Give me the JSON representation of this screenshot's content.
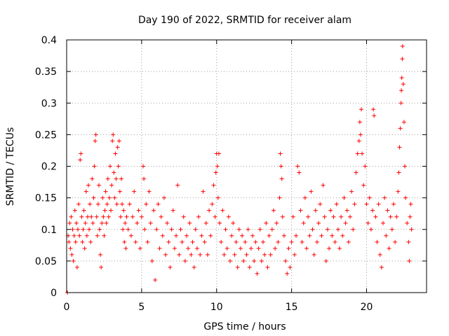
{
  "chart_data": {
    "type": "scatter",
    "title": "Day 190 of 2022, SRMTID for receiver alam",
    "xlabel": "GPS time / hours",
    "ylabel": "SRMTID / TECUs",
    "xlim": [
      0,
      24
    ],
    "ylim": [
      0,
      0.4
    ],
    "x_ticks": [
      0,
      5,
      10,
      15,
      20
    ],
    "x_tick_labels": [
      "0",
      "5",
      "10",
      "15",
      "20"
    ],
    "y_ticks": [
      0,
      0.05,
      0.1,
      0.15,
      0.2,
      0.25,
      0.3,
      0.35,
      0.4
    ],
    "y_tick_labels": [
      "0",
      "0.05",
      "0.1",
      "0.15",
      "0.2",
      "0.25",
      "0.3",
      "0.35",
      "0.4"
    ],
    "grid": true,
    "marker": "plus",
    "color": "#ff0000",
    "series": [
      {
        "name": "SRMTID",
        "points": [
          [
            0.05,
            0.0
          ],
          [
            0.1,
            0.09
          ],
          [
            0.15,
            0.08
          ],
          [
            0.2,
            0.11
          ],
          [
            0.25,
            0.07
          ],
          [
            0.3,
            0.12
          ],
          [
            0.35,
            0.06
          ],
          [
            0.4,
            0.1
          ],
          [
            0.45,
            0.05
          ],
          [
            0.5,
            0.09
          ],
          [
            0.55,
            0.13
          ],
          [
            0.6,
            0.08
          ],
          [
            0.65,
            0.11
          ],
          [
            0.7,
            0.04
          ],
          [
            0.75,
            0.1
          ],
          [
            0.8,
            0.14
          ],
          [
            0.85,
            0.09
          ],
          [
            0.9,
            0.21
          ],
          [
            0.95,
            0.22
          ],
          [
            1.0,
            0.12
          ],
          [
            1.05,
            0.08
          ],
          [
            1.1,
            0.1
          ],
          [
            1.15,
            0.13
          ],
          [
            1.2,
            0.07
          ],
          [
            1.25,
            0.11
          ],
          [
            1.3,
            0.16
          ],
          [
            1.35,
            0.09
          ],
          [
            1.4,
            0.12
          ],
          [
            1.45,
            0.17
          ],
          [
            1.5,
            0.1
          ],
          [
            1.55,
            0.14
          ],
          [
            1.6,
            0.08
          ],
          [
            1.65,
            0.12
          ],
          [
            1.7,
            0.18
          ],
          [
            1.75,
            0.11
          ],
          [
            1.8,
            0.15
          ],
          [
            1.85,
            0.2
          ],
          [
            1.9,
            0.24
          ],
          [
            1.95,
            0.25
          ],
          [
            2.0,
            0.12
          ],
          [
            2.05,
            0.09
          ],
          [
            2.1,
            0.14
          ],
          [
            2.15,
            0.17
          ],
          [
            2.2,
            0.1
          ],
          [
            2.25,
            0.06
          ],
          [
            2.3,
            0.04
          ],
          [
            2.35,
            0.11
          ],
          [
            2.4,
            0.15
          ],
          [
            2.45,
            0.12
          ],
          [
            2.5,
            0.09
          ],
          [
            2.55,
            0.13
          ],
          [
            2.6,
            0.16
          ],
          [
            2.65,
            0.11
          ],
          [
            2.7,
            0.14
          ],
          [
            2.75,
            0.18
          ],
          [
            2.8,
            0.12
          ],
          [
            2.85,
            0.15
          ],
          [
            2.9,
            0.2
          ],
          [
            2.95,
            0.13
          ],
          [
            3.0,
            0.17
          ],
          [
            3.05,
            0.24
          ],
          [
            3.1,
            0.25
          ],
          [
            3.15,
            0.19
          ],
          [
            3.2,
            0.15
          ],
          [
            3.25,
            0.22
          ],
          [
            3.3,
            0.18
          ],
          [
            3.35,
            0.14
          ],
          [
            3.4,
            0.23
          ],
          [
            3.45,
            0.2
          ],
          [
            3.5,
            0.24
          ],
          [
            3.55,
            0.16
          ],
          [
            3.6,
            0.12
          ],
          [
            3.65,
            0.18
          ],
          [
            3.7,
            0.14
          ],
          [
            3.75,
            0.1
          ],
          [
            3.8,
            0.13
          ],
          [
            3.85,
            0.08
          ],
          [
            3.9,
            0.11
          ],
          [
            3.95,
            0.07
          ],
          [
            4.0,
            0.12
          ],
          [
            4.1,
            0.1
          ],
          [
            4.2,
            0.14
          ],
          [
            4.3,
            0.09
          ],
          [
            4.4,
            0.12
          ],
          [
            4.5,
            0.16
          ],
          [
            4.6,
            0.08
          ],
          [
            4.7,
            0.11
          ],
          [
            4.8,
            0.13
          ],
          [
            4.9,
            0.07
          ],
          [
            5.0,
            0.12
          ],
          [
            5.1,
            0.2
          ],
          [
            5.15,
            0.18
          ],
          [
            5.2,
            0.1
          ],
          [
            5.3,
            0.14
          ],
          [
            5.4,
            0.08
          ],
          [
            5.5,
            0.16
          ],
          [
            5.6,
            0.11
          ],
          [
            5.7,
            0.05
          ],
          [
            5.8,
            0.13
          ],
          [
            5.9,
            0.02
          ],
          [
            6.0,
            0.1
          ],
          [
            6.1,
            0.14
          ],
          [
            6.2,
            0.07
          ],
          [
            6.3,
            0.12
          ],
          [
            6.4,
            0.09
          ],
          [
            6.5,
            0.15
          ],
          [
            6.6,
            0.06
          ],
          [
            6.7,
            0.11
          ],
          [
            6.8,
            0.08
          ],
          [
            6.9,
            0.04
          ],
          [
            7.0,
            0.1
          ],
          [
            7.1,
            0.13
          ],
          [
            7.2,
            0.07
          ],
          [
            7.3,
            0.09
          ],
          [
            7.4,
            0.17
          ],
          [
            7.5,
            0.06
          ],
          [
            7.6,
            0.1
          ],
          [
            7.7,
            0.08
          ],
          [
            7.8,
            0.12
          ],
          [
            7.9,
            0.05
          ],
          [
            8.0,
            0.09
          ],
          [
            8.1,
            0.07
          ],
          [
            8.2,
            0.11
          ],
          [
            8.3,
            0.06
          ],
          [
            8.4,
            0.08
          ],
          [
            8.5,
            0.04
          ],
          [
            8.6,
            0.1
          ],
          [
            8.7,
            0.07
          ],
          [
            8.8,
            0.12
          ],
          [
            8.9,
            0.06
          ],
          [
            9.0,
            0.09
          ],
          [
            9.1,
            0.16
          ],
          [
            9.2,
            0.08
          ],
          [
            9.3,
            0.11
          ],
          [
            9.4,
            0.06
          ],
          [
            9.5,
            0.13
          ],
          [
            9.6,
            0.09
          ],
          [
            9.7,
            0.14
          ],
          [
            9.8,
            0.17
          ],
          [
            9.9,
            0.12
          ],
          [
            9.95,
            0.19
          ],
          [
            10.0,
            0.22
          ],
          [
            10.05,
            0.2
          ],
          [
            10.1,
            0.15
          ],
          [
            10.15,
            0.22
          ],
          [
            10.2,
            0.11
          ],
          [
            10.3,
            0.08
          ],
          [
            10.4,
            0.13
          ],
          [
            10.5,
            0.06
          ],
          [
            10.6,
            0.1
          ],
          [
            10.7,
            0.07
          ],
          [
            10.8,
            0.12
          ],
          [
            10.9,
            0.05
          ],
          [
            11.0,
            0.09
          ],
          [
            11.1,
            0.11
          ],
          [
            11.2,
            0.06
          ],
          [
            11.3,
            0.08
          ],
          [
            11.4,
            0.04
          ],
          [
            11.5,
            0.1
          ],
          [
            11.6,
            0.07
          ],
          [
            11.7,
            0.09
          ],
          [
            11.8,
            0.05
          ],
          [
            11.9,
            0.08
          ],
          [
            12.0,
            0.06
          ],
          [
            12.1,
            0.1
          ],
          [
            12.2,
            0.04
          ],
          [
            12.3,
            0.07
          ],
          [
            12.4,
            0.09
          ],
          [
            12.5,
            0.05
          ],
          [
            12.6,
            0.08
          ],
          [
            12.7,
            0.03
          ],
          [
            12.8,
            0.07
          ],
          [
            12.9,
            0.1
          ],
          [
            13.0,
            0.05
          ],
          [
            13.1,
            0.08
          ],
          [
            13.2,
            0.06
          ],
          [
            13.3,
            0.11
          ],
          [
            13.4,
            0.04
          ],
          [
            13.5,
            0.09
          ],
          [
            13.6,
            0.06
          ],
          [
            13.7,
            0.1
          ],
          [
            13.8,
            0.13
          ],
          [
            13.9,
            0.07
          ],
          [
            14.0,
            0.11
          ],
          [
            14.1,
            0.08
          ],
          [
            14.2,
            0.15
          ],
          [
            14.25,
            0.22
          ],
          [
            14.3,
            0.2
          ],
          [
            14.35,
            0.18
          ],
          [
            14.4,
            0.12
          ],
          [
            14.5,
            0.09
          ],
          [
            14.6,
            0.05
          ],
          [
            14.7,
            0.03
          ],
          [
            14.8,
            0.07
          ],
          [
            14.9,
            0.04
          ],
          [
            15.0,
            0.08
          ],
          [
            15.1,
            0.12
          ],
          [
            15.2,
            0.06
          ],
          [
            15.3,
            0.09
          ],
          [
            15.4,
            0.2
          ],
          [
            15.5,
            0.19
          ],
          [
            15.6,
            0.13
          ],
          [
            15.7,
            0.08
          ],
          [
            15.8,
            0.11
          ],
          [
            15.9,
            0.15
          ],
          [
            16.0,
            0.07
          ],
          [
            16.1,
            0.12
          ],
          [
            16.2,
            0.09
          ],
          [
            16.3,
            0.16
          ],
          [
            16.4,
            0.1
          ],
          [
            16.5,
            0.06
          ],
          [
            16.6,
            0.13
          ],
          [
            16.7,
            0.08
          ],
          [
            16.8,
            0.11
          ],
          [
            16.9,
            0.14
          ],
          [
            17.0,
            0.09
          ],
          [
            17.1,
            0.17
          ],
          [
            17.2,
            0.12
          ],
          [
            17.3,
            0.05
          ],
          [
            17.4,
            0.1
          ],
          [
            17.5,
            0.07
          ],
          [
            17.6,
            0.13
          ],
          [
            17.7,
            0.09
          ],
          [
            17.8,
            0.12
          ],
          [
            17.9,
            0.08
          ],
          [
            18.0,
            0.14
          ],
          [
            18.1,
            0.1
          ],
          [
            18.2,
            0.07
          ],
          [
            18.3,
            0.12
          ],
          [
            18.4,
            0.09
          ],
          [
            18.5,
            0.15
          ],
          [
            18.6,
            0.11
          ],
          [
            18.7,
            0.13
          ],
          [
            18.8,
            0.08
          ],
          [
            18.9,
            0.12
          ],
          [
            19.0,
            0.16
          ],
          [
            19.1,
            0.1
          ],
          [
            19.2,
            0.14
          ],
          [
            19.3,
            0.19
          ],
          [
            19.4,
            0.22
          ],
          [
            19.5,
            0.24
          ],
          [
            19.55,
            0.27
          ],
          [
            19.6,
            0.25
          ],
          [
            19.65,
            0.29
          ],
          [
            19.7,
            0.22
          ],
          [
            19.8,
            0.17
          ],
          [
            19.9,
            0.2
          ],
          [
            20.0,
            0.14
          ],
          [
            20.1,
            0.11
          ],
          [
            20.2,
            0.15
          ],
          [
            20.3,
            0.1
          ],
          [
            20.4,
            0.13
          ],
          [
            20.45,
            0.29
          ],
          [
            20.5,
            0.28
          ],
          [
            20.6,
            0.12
          ],
          [
            20.7,
            0.08
          ],
          [
            20.8,
            0.14
          ],
          [
            20.9,
            0.06
          ],
          [
            21.0,
            0.04
          ],
          [
            21.1,
            0.11
          ],
          [
            21.2,
            0.15
          ],
          [
            21.3,
            0.09
          ],
          [
            21.4,
            0.13
          ],
          [
            21.5,
            0.07
          ],
          [
            21.6,
            0.12
          ],
          [
            21.7,
            0.1
          ],
          [
            21.8,
            0.14
          ],
          [
            21.9,
            0.08
          ],
          [
            22.0,
            0.12
          ],
          [
            22.1,
            0.16
          ],
          [
            22.15,
            0.19
          ],
          [
            22.2,
            0.23
          ],
          [
            22.25,
            0.26
          ],
          [
            22.3,
            0.3
          ],
          [
            22.32,
            0.32
          ],
          [
            22.35,
            0.34
          ],
          [
            22.38,
            0.37
          ],
          [
            22.4,
            0.39
          ],
          [
            22.45,
            0.33
          ],
          [
            22.5,
            0.27
          ],
          [
            22.55,
            0.2
          ],
          [
            22.6,
            0.15
          ],
          [
            22.7,
            0.11
          ],
          [
            22.8,
            0.08
          ],
          [
            22.85,
            0.05
          ],
          [
            22.9,
            0.12
          ],
          [
            22.95,
            0.14
          ],
          [
            23.0,
            0.1
          ]
        ]
      }
    ]
  }
}
